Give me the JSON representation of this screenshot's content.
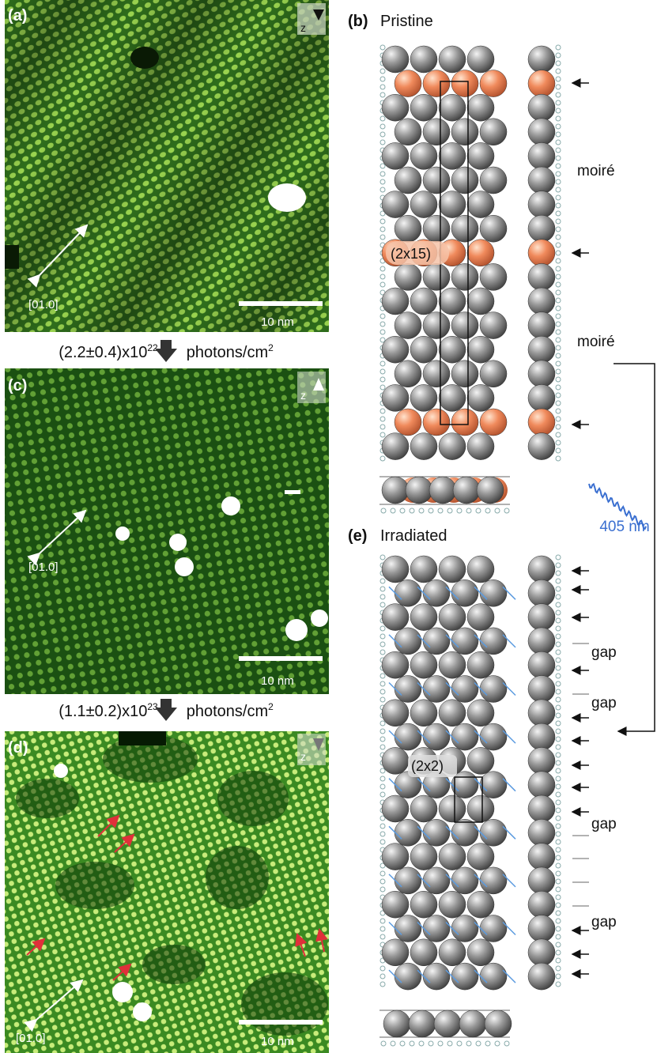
{
  "panels": {
    "a": {
      "label": "(a)",
      "z": "z",
      "direction": "[01.0]",
      "scale": "10 nm"
    },
    "c": {
      "label": "(c)",
      "z": "z",
      "direction": "[01.0]",
      "scale": "10 nm"
    },
    "d": {
      "label": "(d)",
      "z": "z",
      "direction": "[01.0]",
      "scale": "10 nm"
    },
    "b": {
      "label": "(b)",
      "title": "Pristine",
      "cell": "(2x15)",
      "annotations": [
        "moiré",
        "moiré"
      ]
    },
    "e": {
      "label": "(e)",
      "title": "Irradiated",
      "cell": "(2x2)",
      "annotations": [
        "gap",
        "gap",
        "gap",
        "gap"
      ]
    }
  },
  "doses": [
    {
      "base": "(2.2±0.4)x10",
      "exponent": "22",
      "unit": "photons/cm",
      "unit_exponent": "2"
    },
    {
      "base": "(1.1±0.2)x10",
      "exponent": "23",
      "unit": "photons/cm",
      "unit_exponent": "2"
    }
  ],
  "wavelength": "405 nm"
}
